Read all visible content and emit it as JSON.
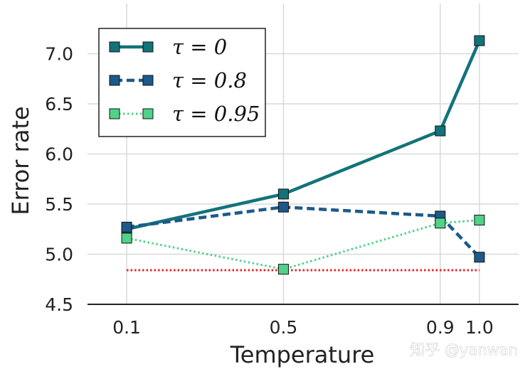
{
  "chart_data": {
    "type": "line",
    "title": "",
    "xlabel": "Temperature",
    "ylabel": "Error rate",
    "x": [
      0.1,
      0.5,
      0.9,
      1.0
    ],
    "x_tick_labels": [
      "0.1",
      "0.5",
      "0.9",
      "1.0"
    ],
    "xlim": [
      0.0,
      1.1
    ],
    "y_ticks": [
      4.5,
      5.0,
      5.5,
      6.0,
      6.5,
      7.0
    ],
    "y_tick_labels": [
      "4.5",
      "5.0",
      "5.5",
      "6.0",
      "6.5",
      "7.0"
    ],
    "ylim": [
      4.5,
      7.5
    ],
    "grid": true,
    "legend_position": "top-left",
    "series": [
      {
        "name": "τ = 0",
        "values": [
          5.25,
          5.6,
          6.23,
          7.13
        ],
        "color": "#12737a",
        "style": "solid"
      },
      {
        "name": "τ = 0.8",
        "values": [
          5.27,
          5.47,
          5.38,
          4.97
        ],
        "color": "#1c5a8a",
        "style": "dashed"
      },
      {
        "name": "τ = 0.95",
        "values": [
          5.16,
          4.85,
          5.31,
          5.34
        ],
        "color": "#4fd28a",
        "style": "dotted"
      }
    ],
    "reference_line": {
      "value": 4.84,
      "color": "#e8222a",
      "style": "dotted",
      "x_from": 0.1,
      "x_to": 1.0
    }
  },
  "watermark": "知乎 @yanwan"
}
